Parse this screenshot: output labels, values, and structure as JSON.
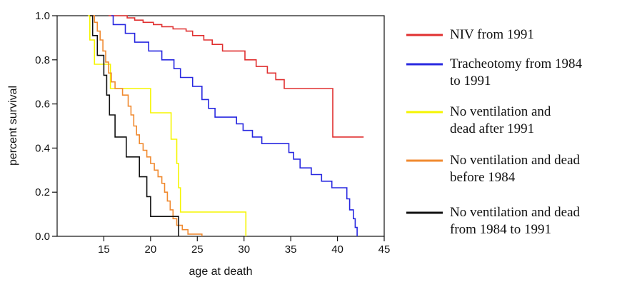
{
  "chart_data": {
    "type": "line",
    "step": true,
    "xlabel": "age at death",
    "ylabel": "percent survival",
    "xlim": [
      10,
      45
    ],
    "ylim": [
      0,
      1
    ],
    "xticks": [
      15,
      20,
      25,
      30,
      35,
      40,
      45
    ],
    "yticks": [
      0.0,
      0.2,
      0.4,
      0.6,
      0.8,
      1.0
    ],
    "xtick_labels": [
      "15",
      "20",
      "25",
      "30",
      "35",
      "40",
      "45"
    ],
    "ytick_labels": [
      "0.0",
      "0.2",
      "0.4",
      "0.6",
      "0.8",
      "1.0"
    ],
    "grid": false,
    "legend_position": "right",
    "series": [
      {
        "name": "NIV from 1991",
        "color": "#e03030",
        "points": [
          [
            15.5,
            1.0
          ],
          [
            17.5,
            0.99
          ],
          [
            18.3,
            0.98
          ],
          [
            19.2,
            0.97
          ],
          [
            20.3,
            0.96
          ],
          [
            21.2,
            0.95
          ],
          [
            22.4,
            0.94
          ],
          [
            23.8,
            0.93
          ],
          [
            24.5,
            0.91
          ],
          [
            25.7,
            0.89
          ],
          [
            26.6,
            0.87
          ],
          [
            27.7,
            0.84
          ],
          [
            29.7,
            0.84
          ],
          [
            30.1,
            0.8
          ],
          [
            30.7,
            0.8
          ],
          [
            31.3,
            0.77
          ],
          [
            32.5,
            0.74
          ],
          [
            33.4,
            0.71
          ],
          [
            34.3,
            0.67
          ],
          [
            39.5,
            0.67
          ],
          [
            39.5,
            0.45
          ],
          [
            42.8,
            0.45
          ]
        ]
      },
      {
        "name": "Tracheotomy from 1984\nto 1991",
        "color": "#2828e0",
        "points": [
          [
            15.8,
            1.0
          ],
          [
            16.0,
            0.96
          ],
          [
            17.3,
            0.92
          ],
          [
            18.3,
            0.88
          ],
          [
            19.8,
            0.84
          ],
          [
            21.2,
            0.8
          ],
          [
            22.5,
            0.76
          ],
          [
            23.2,
            0.72
          ],
          [
            24.5,
            0.68
          ],
          [
            25.5,
            0.62
          ],
          [
            26.2,
            0.58
          ],
          [
            26.9,
            0.54
          ],
          [
            29.2,
            0.51
          ],
          [
            29.9,
            0.48
          ],
          [
            30.9,
            0.45
          ],
          [
            31.9,
            0.42
          ],
          [
            34.0,
            0.42
          ],
          [
            34.8,
            0.38
          ],
          [
            35.3,
            0.35
          ],
          [
            36.0,
            0.31
          ],
          [
            37.2,
            0.28
          ],
          [
            38.3,
            0.25
          ],
          [
            39.4,
            0.22
          ],
          [
            40.8,
            0.22
          ],
          [
            41.0,
            0.17
          ],
          [
            41.3,
            0.12
          ],
          [
            41.7,
            0.08
          ],
          [
            41.9,
            0.04
          ],
          [
            42.1,
            0.0
          ]
        ]
      },
      {
        "name": "No ventilation and\ndead after 1991",
        "color": "#f5f500",
        "points": [
          [
            13.3,
            1.0
          ],
          [
            13.5,
            0.89
          ],
          [
            14.0,
            0.78
          ],
          [
            15.2,
            0.78
          ],
          [
            15.7,
            0.67
          ],
          [
            20.0,
            0.67
          ],
          [
            20.0,
            0.56
          ],
          [
            21.8,
            0.56
          ],
          [
            22.2,
            0.44
          ],
          [
            22.6,
            0.44
          ],
          [
            22.8,
            0.33
          ],
          [
            23.0,
            0.22
          ],
          [
            23.2,
            0.11
          ],
          [
            30.0,
            0.11
          ],
          [
            30.2,
            0.0
          ]
        ]
      },
      {
        "name": "No ventilation and dead\nbefore 1984",
        "color": "#f08a30",
        "points": [
          [
            13.6,
            1.0
          ],
          [
            14.0,
            0.97
          ],
          [
            14.3,
            0.93
          ],
          [
            14.6,
            0.89
          ],
          [
            14.9,
            0.84
          ],
          [
            15.2,
            0.79
          ],
          [
            15.5,
            0.74
          ],
          [
            15.8,
            0.7
          ],
          [
            16.2,
            0.67
          ],
          [
            17.0,
            0.64
          ],
          [
            17.6,
            0.59
          ],
          [
            17.9,
            0.55
          ],
          [
            18.2,
            0.5
          ],
          [
            18.5,
            0.46
          ],
          [
            18.8,
            0.42
          ],
          [
            19.2,
            0.39
          ],
          [
            19.6,
            0.36
          ],
          [
            20.0,
            0.33
          ],
          [
            20.4,
            0.3
          ],
          [
            20.8,
            0.27
          ],
          [
            21.2,
            0.24
          ],
          [
            21.5,
            0.2
          ],
          [
            21.8,
            0.16
          ],
          [
            22.1,
            0.12
          ],
          [
            22.4,
            0.08
          ],
          [
            22.8,
            0.05
          ],
          [
            23.4,
            0.03
          ],
          [
            24.0,
            0.01
          ],
          [
            25.5,
            0.0
          ]
        ]
      },
      {
        "name": "No ventilation and dead\nfrom 1984 to 1991",
        "color": "#111111",
        "points": [
          [
            13.5,
            1.0
          ],
          [
            13.8,
            0.91
          ],
          [
            14.3,
            0.82
          ],
          [
            15.0,
            0.73
          ],
          [
            15.3,
            0.64
          ],
          [
            15.6,
            0.55
          ],
          [
            16.0,
            0.55
          ],
          [
            16.2,
            0.45
          ],
          [
            17.3,
            0.45
          ],
          [
            17.4,
            0.36
          ],
          [
            18.7,
            0.36
          ],
          [
            18.8,
            0.27
          ],
          [
            19.4,
            0.27
          ],
          [
            19.6,
            0.18
          ],
          [
            20.0,
            0.09
          ],
          [
            22.8,
            0.09
          ],
          [
            23.0,
            0.0
          ]
        ]
      }
    ]
  }
}
